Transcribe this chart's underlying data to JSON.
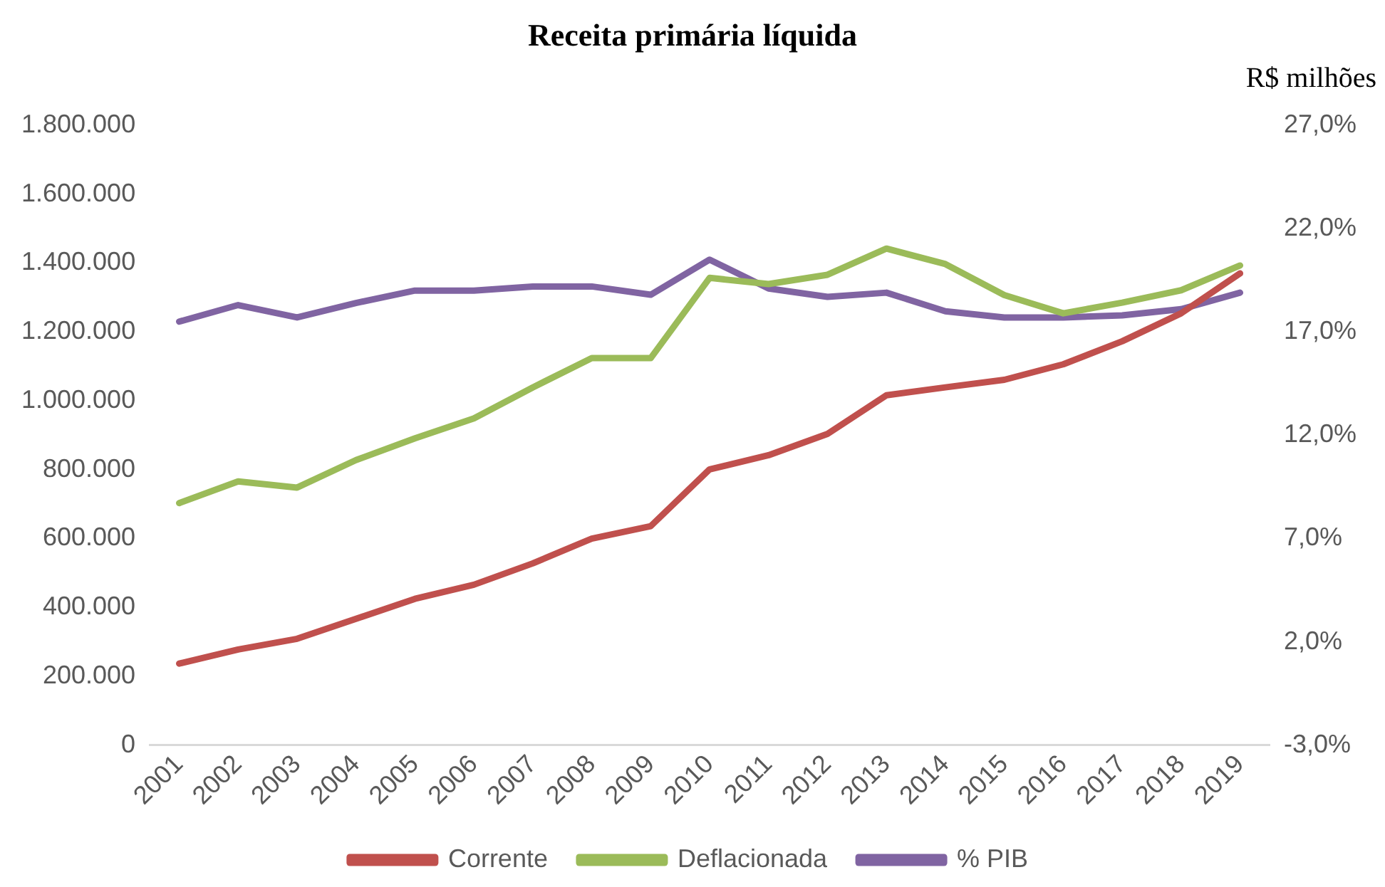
{
  "chart_data": {
    "type": "line",
    "title": "Receita primária líquida",
    "annotations": [
      "R$ milhões"
    ],
    "categories": [
      "2001",
      "2002",
      "2003",
      "2004",
      "2005",
      "2006",
      "2007",
      "2008",
      "2009",
      "2010",
      "2011",
      "2012",
      "2013",
      "2014",
      "2015",
      "2016",
      "2017",
      "2018",
      "2019"
    ],
    "series": [
      {
        "name": "Corrente",
        "color": "#c0504d",
        "values": [
          237000,
          278000,
          309000,
          367000,
          425000,
          466000,
          528000,
          600000,
          636000,
          801000,
          842000,
          904000,
          1016000,
          1039000,
          1061000,
          1106000,
          1173000,
          1254000,
          1370000
        ]
      },
      {
        "name": "Deflacionada",
        "color": "#9bbb59",
        "values": [
          703000,
          766000,
          748000,
          828000,
          891000,
          949000,
          1039000,
          1124000,
          1124000,
          1357000,
          1339000,
          1366000,
          1442000,
          1397000,
          1307000,
          1254000,
          1285000,
          1321000,
          1393000
        ]
      },
      {
        "name": "% PIB",
        "color": "#8064a2",
        "axis": "y2",
        "values": [
          17.5,
          18.3,
          17.7,
          18.4,
          19.0,
          19.0,
          19.2,
          19.2,
          18.8,
          20.5,
          19.1,
          18.7,
          18.9,
          18.0,
          17.7,
          17.7,
          17.8,
          18.1,
          18.9
        ]
      }
    ],
    "ylim": [
      0,
      1800000
    ],
    "yticks": [
      0,
      {
        "value": 200000,
        "label": "200.000"
      },
      {
        "value": 400000,
        "label": "400.000"
      },
      {
        "value": 600000,
        "label": "600.000"
      },
      {
        "value": 800000,
        "label": "800.000"
      },
      {
        "value": 1000000,
        "label": "1.000.000"
      },
      {
        "value": 1200000,
        "label": "1.200.000"
      },
      {
        "value": 1400000,
        "label": "1.400.000"
      },
      {
        "value": 1600000,
        "label": "1.600.000"
      },
      {
        "value": 1800000,
        "label": "1.800.000"
      }
    ],
    "y2lim": [
      -3,
      27
    ],
    "y2ticks": [
      {
        "value": -3,
        "label": "-3,0%"
      },
      {
        "value": 2,
        "label": "2,0%"
      },
      {
        "value": 7,
        "label": "7,0%"
      },
      {
        "value": 12,
        "label": "12,0%"
      },
      {
        "value": 17,
        "label": "17,0%"
      },
      {
        "value": 22,
        "label": "22,0%"
      },
      {
        "value": 27,
        "label": "27,0%"
      }
    ],
    "grid": false,
    "legend": "bottom",
    "marker": "none",
    "line_style": "solid"
  }
}
